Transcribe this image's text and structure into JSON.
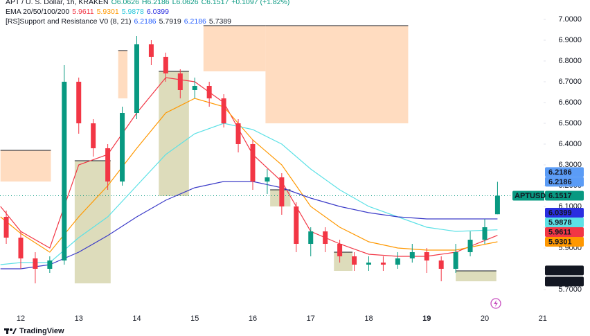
{
  "chart_data": {
    "type": "candlestick",
    "legend": [
      {
        "name": "APT / U. S. Dollar, 1h, KRAKEN",
        "items": [
          "O6.0626",
          "H6.2186",
          "L6.0626",
          "C6.1517",
          "+0.1097 (+1.82%)"
        ],
        "colors": [
          "#089981",
          "#089981",
          "#089981",
          "#089981",
          "#089981"
        ]
      },
      {
        "name": "EMA 20/50/100/200",
        "items": [
          "5.9611",
          "5.9301",
          "5.9878",
          "6.0399"
        ],
        "colors": [
          "#f23645",
          "#ff9800",
          "#26c6da",
          "#2a2ee0"
        ]
      },
      {
        "name": "[RS]Support and Resistance V0 (8, 21)",
        "items": [
          "6.2186",
          "5.7919",
          "6.2186",
          "5.7389"
        ],
        "colors": [
          "#2962ff",
          "#131722",
          "#2962ff",
          "#131722"
        ]
      }
    ],
    "up_color": "#089981",
    "down_color": "#f23645",
    "x": [
      11.75,
      12.0,
      12.25,
      12.5,
      12.75,
      13.0,
      13.25,
      13.5,
      13.75,
      14.0,
      14.25,
      14.5,
      14.75,
      15.0,
      15.25,
      15.5,
      15.75,
      16.0,
      16.25,
      16.5,
      16.75,
      17.0,
      17.25,
      17.5,
      17.75,
      18.0,
      18.25,
      18.5,
      18.75,
      19.0,
      19.25,
      19.5,
      19.75,
      20.0,
      20.22
    ],
    "open": [
      6.05,
      5.95,
      5.85,
      5.8,
      5.84,
      6.7,
      6.5,
      6.38,
      6.22,
      6.55,
      6.88,
      6.82,
      6.74,
      6.66,
      6.68,
      6.62,
      6.5,
      6.4,
      6.22,
      6.24,
      6.1,
      5.92,
      5.98,
      5.92,
      5.86,
      5.82,
      5.83,
      5.82,
      5.85,
      5.88,
      5.84,
      5.8,
      5.88,
      5.94,
      6.0626
    ],
    "high": [
      6.08,
      5.98,
      5.88,
      5.86,
      6.78,
      6.72,
      6.52,
      6.4,
      6.58,
      6.92,
      6.9,
      6.84,
      6.76,
      6.72,
      6.7,
      6.64,
      6.52,
      6.42,
      6.28,
      6.26,
      6.12,
      6.0,
      6.0,
      5.94,
      5.88,
      5.86,
      5.86,
      5.88,
      5.92,
      5.9,
      5.86,
      5.92,
      5.98,
      6.04,
      6.2186
    ],
    "low": [
      5.92,
      5.8,
      5.73,
      5.78,
      5.82,
      6.45,
      6.34,
      6.18,
      6.2,
      6.52,
      6.78,
      6.7,
      6.62,
      6.62,
      6.58,
      6.48,
      6.36,
      6.18,
      6.16,
      6.06,
      5.88,
      5.86,
      5.88,
      5.83,
      5.79,
      5.79,
      5.79,
      5.8,
      5.83,
      5.78,
      5.74,
      5.78,
      5.86,
      5.92,
      6.0626
    ],
    "close": [
      5.95,
      5.85,
      5.8,
      5.84,
      6.7,
      6.5,
      6.38,
      6.22,
      6.55,
      6.88,
      6.82,
      6.74,
      6.66,
      6.68,
      6.62,
      6.5,
      6.4,
      6.22,
      6.24,
      6.1,
      5.92,
      5.98,
      5.92,
      5.86,
      5.82,
      5.83,
      5.82,
      5.85,
      5.88,
      5.84,
      5.8,
      5.88,
      5.94,
      6.0,
      6.1517
    ],
    "series": [
      {
        "color": "#f23645",
        "x": [
          11.65,
          12.0,
          12.5,
          13.0,
          13.5,
          14.0,
          14.5,
          15.0,
          15.5,
          16.0,
          16.5,
          17.0,
          17.5,
          18.0,
          18.5,
          19.0,
          19.5,
          20.22
        ],
        "values": [
          6.1,
          5.98,
          5.9,
          6.3,
          6.35,
          6.55,
          6.72,
          6.7,
          6.6,
          6.35,
          6.22,
          5.98,
          5.92,
          5.87,
          5.86,
          5.86,
          5.88,
          5.9611
        ]
      },
      {
        "color": "#ff9800",
        "x": [
          11.65,
          12.0,
          12.5,
          13.0,
          13.5,
          14.0,
          14.5,
          15.0,
          15.5,
          16.0,
          16.5,
          17.0,
          17.5,
          18.0,
          18.5,
          19.0,
          19.5,
          20.22
        ],
        "values": [
          6.05,
          5.97,
          5.88,
          6.05,
          6.2,
          6.38,
          6.55,
          6.62,
          6.58,
          6.42,
          6.3,
          6.1,
          6.0,
          5.93,
          5.9,
          5.89,
          5.89,
          5.9301
        ]
      },
      {
        "color": "#5ce1e6",
        "x": [
          11.65,
          12.0,
          12.5,
          13.0,
          13.5,
          14.0,
          14.5,
          15.0,
          15.5,
          16.0,
          16.5,
          17.0,
          17.5,
          18.0,
          18.5,
          19.0,
          19.5,
          20.22
        ],
        "values": [
          5.82,
          5.83,
          5.83,
          5.95,
          6.05,
          6.2,
          6.35,
          6.45,
          6.5,
          6.47,
          6.4,
          6.28,
          6.18,
          6.1,
          6.05,
          6.0,
          5.98,
          5.9878
        ]
      },
      {
        "color": "#3a3ac8",
        "x": [
          11.65,
          12.0,
          12.5,
          13.0,
          13.5,
          14.0,
          14.5,
          15.0,
          15.5,
          16.0,
          16.5,
          17.0,
          17.5,
          18.0,
          18.5,
          19.0,
          19.5,
          20.22
        ],
        "values": [
          5.8,
          5.8,
          5.82,
          5.88,
          5.96,
          6.05,
          6.13,
          6.19,
          6.22,
          6.22,
          6.19,
          6.14,
          6.1,
          6.07,
          6.05,
          6.04,
          6.04,
          6.0399
        ]
      }
    ],
    "zones": [
      {
        "color": "#ffdcc0",
        "x": [
          11.65,
          12.52
        ],
        "values": [
          6.37,
          6.22
        ]
      },
      {
        "color": "#ffdcc0",
        "x": [
          13.68,
          13.84
        ],
        "values": [
          6.85,
          6.62
        ]
      },
      {
        "color": "#ffdcc0",
        "x": [
          15.15,
          16.22
        ],
        "values": [
          6.97,
          6.75
        ]
      },
      {
        "color": "#ffdcc0",
        "x": [
          16.22,
          18.68
        ],
        "values": [
          6.97,
          6.5
        ]
      },
      {
        "color": "#dddcbb",
        "x": [
          12.93,
          13.55
        ],
        "values": [
          6.32,
          5.73
        ]
      },
      {
        "color": "#dddcbb",
        "x": [
          14.38,
          14.9
        ],
        "values": [
          6.75,
          6.15
        ]
      },
      {
        "color": "#dddcbb",
        "x": [
          16.3,
          16.65
        ],
        "values": [
          6.18,
          6.1
        ]
      },
      {
        "color": "#dddcbb",
        "x": [
          17.4,
          17.72
        ],
        "values": [
          5.88,
          5.79
        ]
      },
      {
        "color": "#dddcbb",
        "x": [
          19.5,
          20.2
        ],
        "values": [
          5.79,
          5.74
        ]
      }
    ],
    "price_labels": [
      {
        "value": 6.2186,
        "label": "6.2186",
        "color": "#5b9cf6",
        "text_color": "#131722"
      },
      {
        "value": 6.2186,
        "label": "6.2186",
        "color": "#5b9cf6",
        "text_color": "#131722"
      },
      {
        "name": "APTUSD",
        "value": 6.1517,
        "label": "6.1517",
        "color": "#089981",
        "text_color": "#ffffff"
      },
      {
        "value": 6.0399,
        "label": "6.0399",
        "color": "#2a2ee0",
        "text_color": "#ffffff"
      },
      {
        "value": 5.9878,
        "label": "5.9878",
        "color": "#5ce1e6",
        "text_color": "#131722"
      },
      {
        "value": 5.9611,
        "label": "5.9611",
        "color": "#f23645",
        "text_color": "#ffffff"
      },
      {
        "value": 5.9301,
        "label": "5.9301",
        "color": "#ff9800",
        "text_color": "#131722"
      },
      {
        "value": 5.7919,
        "label": "5.7919",
        "color": "#131722",
        "text_color": "#ffffff"
      },
      {
        "value": 5.7389,
        "label": "5.7389",
        "color": "#131722",
        "text_color": "#ffffff"
      }
    ],
    "xlim": [
      11.642,
      21.015
    ],
    "xticks": [
      12,
      13,
      14,
      15,
      16,
      17,
      18,
      19,
      20,
      21
    ],
    "ylim": [
      5.5767,
      7.0933
    ],
    "yticks": [
      {
        "value": 5.7,
        "label": "5.7000"
      },
      {
        "value": 5.8,
        "label": "5.8000"
      },
      {
        "value": 5.9,
        "label": "5.9000"
      },
      {
        "value": 6.0,
        "label": "6.0000"
      },
      {
        "value": 6.1,
        "label": "6.1000"
      },
      {
        "value": 6.2,
        "label": "6.2000"
      },
      {
        "value": 6.3,
        "label": "6.3000"
      },
      {
        "value": 6.4,
        "label": "6.4000"
      },
      {
        "value": 6.5,
        "label": "6.5000"
      },
      {
        "value": 6.6,
        "label": "6.6000"
      },
      {
        "value": 6.7,
        "label": "6.7000"
      },
      {
        "value": 6.8,
        "label": "6.8000"
      },
      {
        "value": 6.9,
        "label": "6.9000"
      },
      {
        "value": 7.0,
        "label": "7.0000"
      }
    ],
    "grid": false
  },
  "footer": {
    "brand": "TradingView"
  }
}
